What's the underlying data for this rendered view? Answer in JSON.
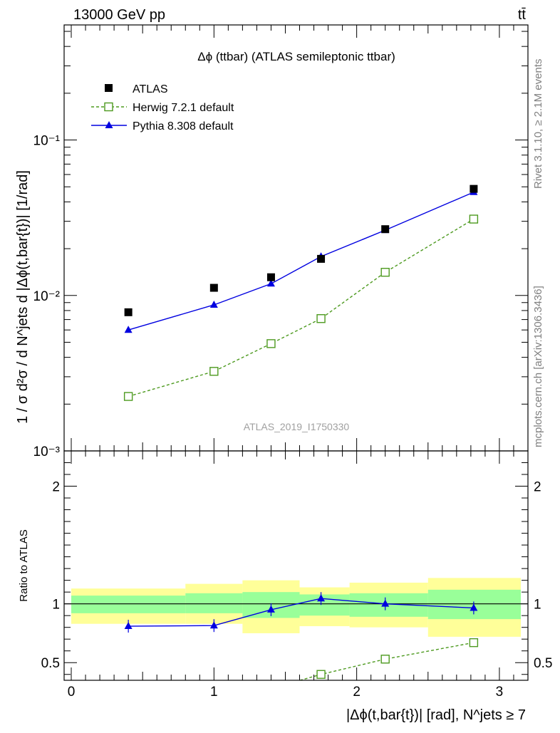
{
  "header": {
    "left_label": "13000 GeV pp",
    "right_label": "tt̄"
  },
  "side_labels": {
    "rivet": "Rivet 3.1.10, ≥ 2.1M events",
    "mcplots": "mcplots.cern.ch [arXiv:1306.3436]"
  },
  "chart_data": [
    {
      "type": "scatter",
      "panel": "main",
      "title": "Δϕ (ttbar) (ATLAS semileptonic ttbar)",
      "watermark": "ATLAS_2019_I1750330",
      "ylabel": "1 / σ d²σ / d N^jets d |Δϕ(t,bar{t})| [1/rad]",
      "yscale": "log",
      "ylim": [
        0.001,
        0.55
      ],
      "xlim": [
        -0.05,
        3.2
      ],
      "ytick_labels": [
        "10⁻³",
        "10⁻²",
        "10⁻¹"
      ],
      "legend_position": "top-left",
      "series": [
        {
          "name": "ATLAS",
          "style": "data",
          "color": "#000000",
          "x": [
            0.4,
            1.0,
            1.4,
            1.75,
            2.2,
            2.82
          ],
          "values": [
            0.0078,
            0.0112,
            0.0131,
            0.0172,
            0.0267,
            0.0485
          ]
        },
        {
          "name": "Herwig 7.2.1 default",
          "style": "dashed-open-square",
          "color": "#4d9a1f",
          "x": [
            0.4,
            1.0,
            1.4,
            1.75,
            2.2,
            2.82
          ],
          "values": [
            0.00224,
            0.00325,
            0.0049,
            0.0071,
            0.0141,
            0.031
          ]
        },
        {
          "name": "Pythia 8.308 default",
          "style": "solid-triangle",
          "color": "#0000e0",
          "x": [
            0.4,
            1.0,
            1.4,
            1.75,
            2.2,
            2.82
          ],
          "values": [
            0.006,
            0.0087,
            0.0119,
            0.0178,
            0.0263,
            0.0462
          ]
        }
      ]
    },
    {
      "type": "line",
      "panel": "ratio",
      "ylabel": "Ratio to ATLAS",
      "xlabel": "|Δϕ(t,bar{t})| [rad], N^jets ≥ 7",
      "ylim": [
        0.35,
        2.3
      ],
      "xlim": [
        -0.05,
        3.2
      ],
      "x_tick_labels": [
        "0",
        "1",
        "2",
        "3"
      ],
      "y_tick_labels": [
        "0.5",
        "1",
        "2"
      ],
      "bins": [
        {
          "lo": 0.0,
          "hi": 0.8,
          "inner": [
            0.92,
            1.07
          ],
          "outer": [
            0.83,
            1.13
          ]
        },
        {
          "lo": 0.8,
          "hi": 1.2,
          "inner": [
            0.92,
            1.09
          ],
          "outer": [
            0.83,
            1.17
          ]
        },
        {
          "lo": 1.2,
          "hi": 1.6,
          "inner": [
            0.88,
            1.1
          ],
          "outer": [
            0.75,
            1.2
          ]
        },
        {
          "lo": 1.6,
          "hi": 1.95,
          "inner": [
            0.9,
            1.08
          ],
          "outer": [
            0.81,
            1.14
          ]
        },
        {
          "lo": 1.95,
          "hi": 2.5,
          "inner": [
            0.89,
            1.09
          ],
          "outer": [
            0.8,
            1.18
          ]
        },
        {
          "lo": 2.5,
          "hi": 3.15,
          "inner": [
            0.87,
            1.12
          ],
          "outer": [
            0.72,
            1.22
          ]
        }
      ],
      "series": [
        {
          "name": "Herwig 7.2.1 default",
          "color": "#4d9a1f",
          "x": [
            1.75,
            2.2,
            2.82
          ],
          "values": [
            0.4,
            0.53,
            0.67
          ]
        },
        {
          "name": "Pythia 8.308 default",
          "color": "#0000e0",
          "x": [
            0.4,
            1.0,
            1.4,
            1.75,
            2.2,
            2.82
          ],
          "values": [
            0.81,
            0.815,
            0.95,
            1.045,
            1.0,
            0.965
          ]
        }
      ]
    }
  ]
}
